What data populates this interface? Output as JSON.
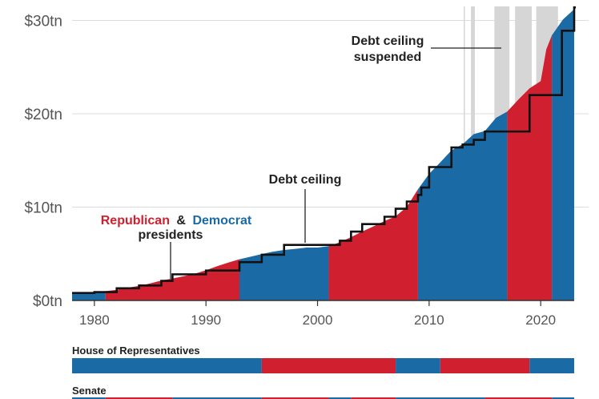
{
  "chart_data": {
    "type": "area",
    "xlim": [
      1978,
      2023
    ],
    "ylim": [
      0,
      31.5
    ],
    "y_ticks": [
      {
        "value": 0,
        "label": "$0tn"
      },
      {
        "value": 10,
        "label": "$10tn"
      },
      {
        "value": 20,
        "label": "$20tn"
      },
      {
        "value": 30,
        "label": "$30tn"
      }
    ],
    "x_ticks": [
      {
        "value": 1980,
        "label": "1980"
      },
      {
        "value": 1990,
        "label": "1990"
      },
      {
        "value": 2000,
        "label": "2000"
      },
      {
        "value": 2010,
        "label": "2010"
      },
      {
        "value": 2020,
        "label": "2020"
      }
    ],
    "grid": true,
    "colors": {
      "republican": "#d0202f",
      "democrat": "#1a6aa6",
      "suspended": "#d6d6d6",
      "ceiling": "#111111",
      "grid": "#dddddd"
    },
    "debt_series": {
      "x": [
        1978,
        1979,
        1980,
        1981,
        1982,
        1983,
        1984,
        1985,
        1986,
        1987,
        1988,
        1989,
        1990,
        1991,
        1992,
        1993,
        1994,
        1995,
        1996,
        1997,
        1998,
        1999,
        2000,
        2001,
        2002,
        2003,
        2004,
        2005,
        2006,
        2007,
        2008,
        2009,
        2010,
        2011,
        2012,
        2013,
        2014,
        2015,
        2016,
        2017,
        2018,
        2019,
        2020,
        2020.5,
        2021,
        2022,
        2023
      ],
      "y": [
        0.77,
        0.83,
        0.91,
        1.0,
        1.14,
        1.37,
        1.56,
        1.82,
        2.13,
        2.35,
        2.6,
        2.86,
        3.23,
        3.67,
        4.06,
        4.41,
        4.69,
        4.97,
        5.22,
        5.41,
        5.53,
        5.66,
        5.67,
        5.81,
        6.23,
        6.78,
        7.38,
        7.93,
        8.51,
        9.01,
        10.02,
        11.91,
        13.56,
        14.79,
        16.07,
        16.74,
        17.82,
        18.15,
        19.57,
        20.24,
        21.52,
        22.72,
        23.5,
        26.9,
        28.4,
        30.1,
        31.2
      ]
    },
    "ceiling_steps": {
      "x": [
        1978,
        1980,
        1982,
        1984,
        1986,
        1987,
        1990,
        1993,
        1995,
        1997,
        2002,
        2003,
        2004,
        2006,
        2007,
        2008,
        2009,
        2009.3,
        2010,
        2011,
        2012,
        2013,
        2014,
        2015,
        2017,
        2019,
        2021,
        2021.9,
        2023
      ],
      "y": [
        0.8,
        0.9,
        1.3,
        1.6,
        2.1,
        2.8,
        3.2,
        4.1,
        4.9,
        5.95,
        6.4,
        7.38,
        8.18,
        8.97,
        9.82,
        10.6,
        11.3,
        12.1,
        14.29,
        14.29,
        16.39,
        16.7,
        17.2,
        18.1,
        18.1,
        22.0,
        22.0,
        28.9,
        31.4
      ]
    },
    "presidents": [
      {
        "party": "democrat",
        "start": 1977,
        "end": 1981
      },
      {
        "party": "republican",
        "start": 1981,
        "end": 1993
      },
      {
        "party": "democrat",
        "start": 1993,
        "end": 2001
      },
      {
        "party": "republican",
        "start": 2001,
        "end": 2009
      },
      {
        "party": "democrat",
        "start": 2009,
        "end": 2017
      },
      {
        "party": "republican",
        "start": 2017,
        "end": 2021
      },
      {
        "party": "democrat",
        "start": 2021,
        "end": 2023
      }
    ],
    "suspensions": [
      {
        "start": 2013.1,
        "end": 2013.2
      },
      {
        "start": 2013.75,
        "end": 2014.1
      },
      {
        "start": 2015.85,
        "end": 2017.2
      },
      {
        "start": 2017.7,
        "end": 2019.2
      },
      {
        "start": 2019.6,
        "end": 2021.55
      }
    ],
    "house": [
      {
        "party": "democrat",
        "start": 1977,
        "end": 1995
      },
      {
        "party": "republican",
        "start": 1995,
        "end": 2007
      },
      {
        "party": "democrat",
        "start": 2007,
        "end": 2011
      },
      {
        "party": "republican",
        "start": 2011,
        "end": 2019
      },
      {
        "party": "democrat",
        "start": 2019,
        "end": 2023
      }
    ],
    "senate": [
      {
        "party": "democrat",
        "start": 1977,
        "end": 1981
      },
      {
        "party": "republican",
        "start": 1981,
        "end": 1987
      },
      {
        "party": "democrat",
        "start": 1987,
        "end": 1995
      },
      {
        "party": "republican",
        "start": 1995,
        "end": 2001
      },
      {
        "party": "democrat",
        "start": 2001,
        "end": 2003
      },
      {
        "party": "republican",
        "start": 2003,
        "end": 2007
      },
      {
        "party": "democrat",
        "start": 2007,
        "end": 2015
      },
      {
        "party": "republican",
        "start": 2015,
        "end": 2021
      },
      {
        "party": "democrat",
        "start": 2021,
        "end": 2023
      }
    ],
    "annotations": {
      "debt_ceiling": "Debt ceiling",
      "suspended_line1": "Debt ceiling",
      "suspended_line2": "suspended",
      "republican_word": "Republican",
      "amp": "&",
      "democrat_word": "Democrat",
      "presidents_word": "presidents"
    },
    "labels": {
      "house": "House of Representatives",
      "senate": "Senate"
    }
  }
}
